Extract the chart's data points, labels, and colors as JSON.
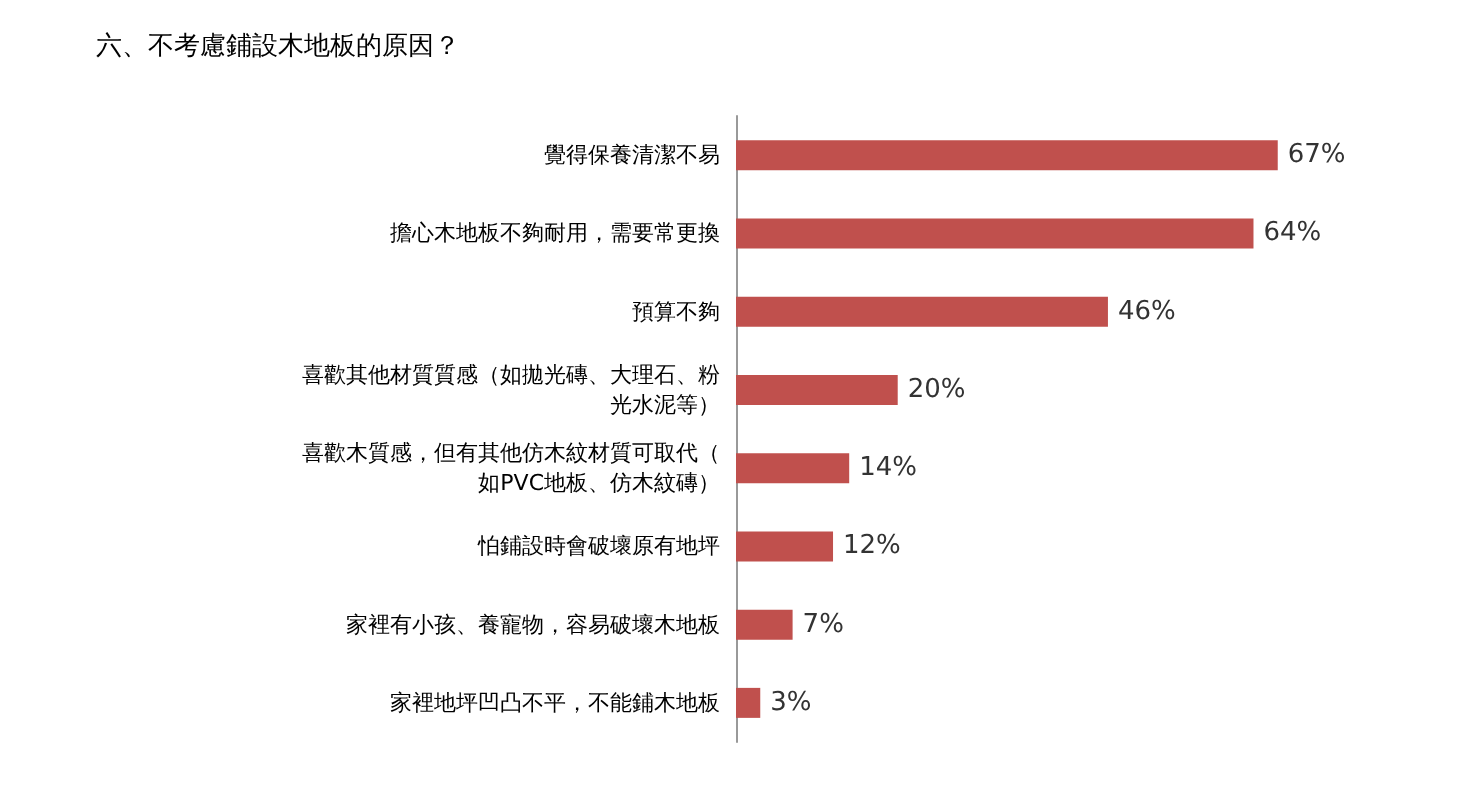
{
  "chart_data": {
    "type": "bar",
    "orientation": "horizontal",
    "title": "六、不考慮鋪設木地板的原因？",
    "categories": [
      "覺得保養清潔不易",
      "擔心木地板不夠耐用，需要常更換",
      "預算不夠",
      "喜歡其他材質質感（如拋光磚、大理石、粉光水泥等）",
      "喜歡木質感，但有其他仿木紋材質可取代（如PVC地板、仿木紋磚）",
      "怕鋪設時會破壞原有地坪",
      "家裡有小孩、養寵物，容易破壞木地板",
      "家裡地坪凹凸不平，不能鋪木地板"
    ],
    "values": [
      67,
      64,
      46,
      20,
      14,
      12,
      7,
      3
    ],
    "value_labels": [
      "67%",
      "64%",
      "46%",
      "20%",
      "14%",
      "12%",
      "7%",
      "3%"
    ],
    "color": "#c0504d"
  }
}
